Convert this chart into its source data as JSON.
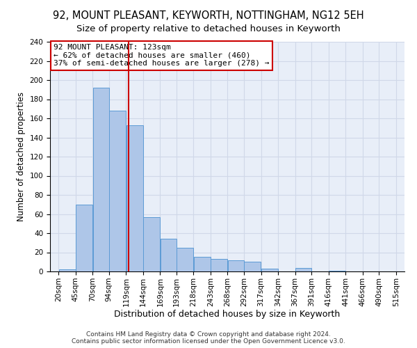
{
  "title": "92, MOUNT PLEASANT, KEYWORTH, NOTTINGHAM, NG12 5EH",
  "subtitle": "Size of property relative to detached houses in Keyworth",
  "xlabel": "Distribution of detached houses by size in Keyworth",
  "ylabel": "Number of detached properties",
  "bins": [
    20,
    45,
    70,
    94,
    119,
    144,
    169,
    193,
    218,
    243,
    268,
    292,
    317,
    342,
    367,
    391,
    416,
    441,
    466,
    490,
    515
  ],
  "values": [
    2,
    70,
    192,
    168,
    153,
    57,
    34,
    25,
    15,
    13,
    12,
    10,
    3,
    0,
    4,
    0,
    1,
    0,
    0,
    0
  ],
  "bar_color": "#aec6e8",
  "bar_edge_color": "#5b9bd5",
  "vline_x": 123,
  "vline_color": "#cc0000",
  "annotation_text_line1": "92 MOUNT PLEASANT: 123sqm",
  "annotation_text_line2": "← 62% of detached houses are smaller (460)",
  "annotation_text_line3": "37% of semi-detached houses are larger (278) →",
  "annotation_box_color": "#ffffff",
  "annotation_box_edgecolor": "#cc0000",
  "ylim": [
    0,
    240
  ],
  "yticks": [
    0,
    20,
    40,
    60,
    80,
    100,
    120,
    140,
    160,
    180,
    200,
    220,
    240
  ],
  "grid_color": "#d0d8e8",
  "background_color": "#e8eef8",
  "footer_line1": "Contains HM Land Registry data © Crown copyright and database right 2024.",
  "footer_line2": "Contains public sector information licensed under the Open Government Licence v3.0.",
  "title_fontsize": 10.5,
  "subtitle_fontsize": 9.5,
  "xlabel_fontsize": 9,
  "ylabel_fontsize": 8.5,
  "tick_fontsize": 7.5,
  "annotation_fontsize": 8,
  "footer_fontsize": 6.5
}
